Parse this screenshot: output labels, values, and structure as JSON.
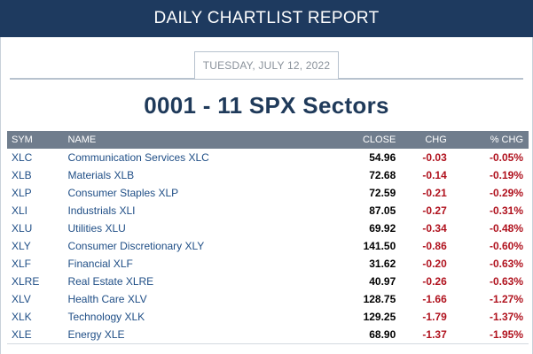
{
  "header": {
    "title": "DAILY CHARTLIST REPORT"
  },
  "report": {
    "date": "TUESDAY, JULY 12, 2022",
    "title": "0001 - 11 SPX Sectors"
  },
  "table": {
    "columns": {
      "sym": "SYM",
      "name": "NAME",
      "close": "CLOSE",
      "chg": "CHG",
      "pct": "% CHG"
    },
    "rows": [
      {
        "sym": "XLC",
        "name": "Communication Services XLC",
        "close": "54.96",
        "chg": "-0.03",
        "pct": "-0.05%"
      },
      {
        "sym": "XLB",
        "name": "Materials XLB",
        "close": "72.68",
        "chg": "-0.14",
        "pct": "-0.19%"
      },
      {
        "sym": "XLP",
        "name": "Consumer Staples XLP",
        "close": "72.59",
        "chg": "-0.21",
        "pct": "-0.29%"
      },
      {
        "sym": "XLI",
        "name": "Industrials XLI",
        "close": "87.05",
        "chg": "-0.27",
        "pct": "-0.31%"
      },
      {
        "sym": "XLU",
        "name": "Utilities XLU",
        "close": "69.92",
        "chg": "-0.34",
        "pct": "-0.48%"
      },
      {
        "sym": "XLY",
        "name": "Consumer Discretionary XLY",
        "close": "141.50",
        "chg": "-0.86",
        "pct": "-0.60%"
      },
      {
        "sym": "XLF",
        "name": "Financial XLF",
        "close": "31.62",
        "chg": "-0.20",
        "pct": "-0.63%"
      },
      {
        "sym": "XLRE",
        "name": "Real Estate XLRE",
        "close": "40.97",
        "chg": "-0.26",
        "pct": "-0.63%"
      },
      {
        "sym": "XLV",
        "name": "Health Care XLV",
        "close": "128.75",
        "chg": "-1.66",
        "pct": "-1.27%"
      },
      {
        "sym": "XLK",
        "name": "Technology XLK",
        "close": "129.25",
        "chg": "-1.79",
        "pct": "-1.37%"
      },
      {
        "sym": "XLE",
        "name": "Energy XLE",
        "close": "68.90",
        "chg": "-1.37",
        "pct": "-1.95%"
      }
    ]
  },
  "colors": {
    "header_bg": "#1e3a5f",
    "table_header_bg": "#707d8d",
    "link": "#1f4e86",
    "negative": "#b0121e"
  }
}
